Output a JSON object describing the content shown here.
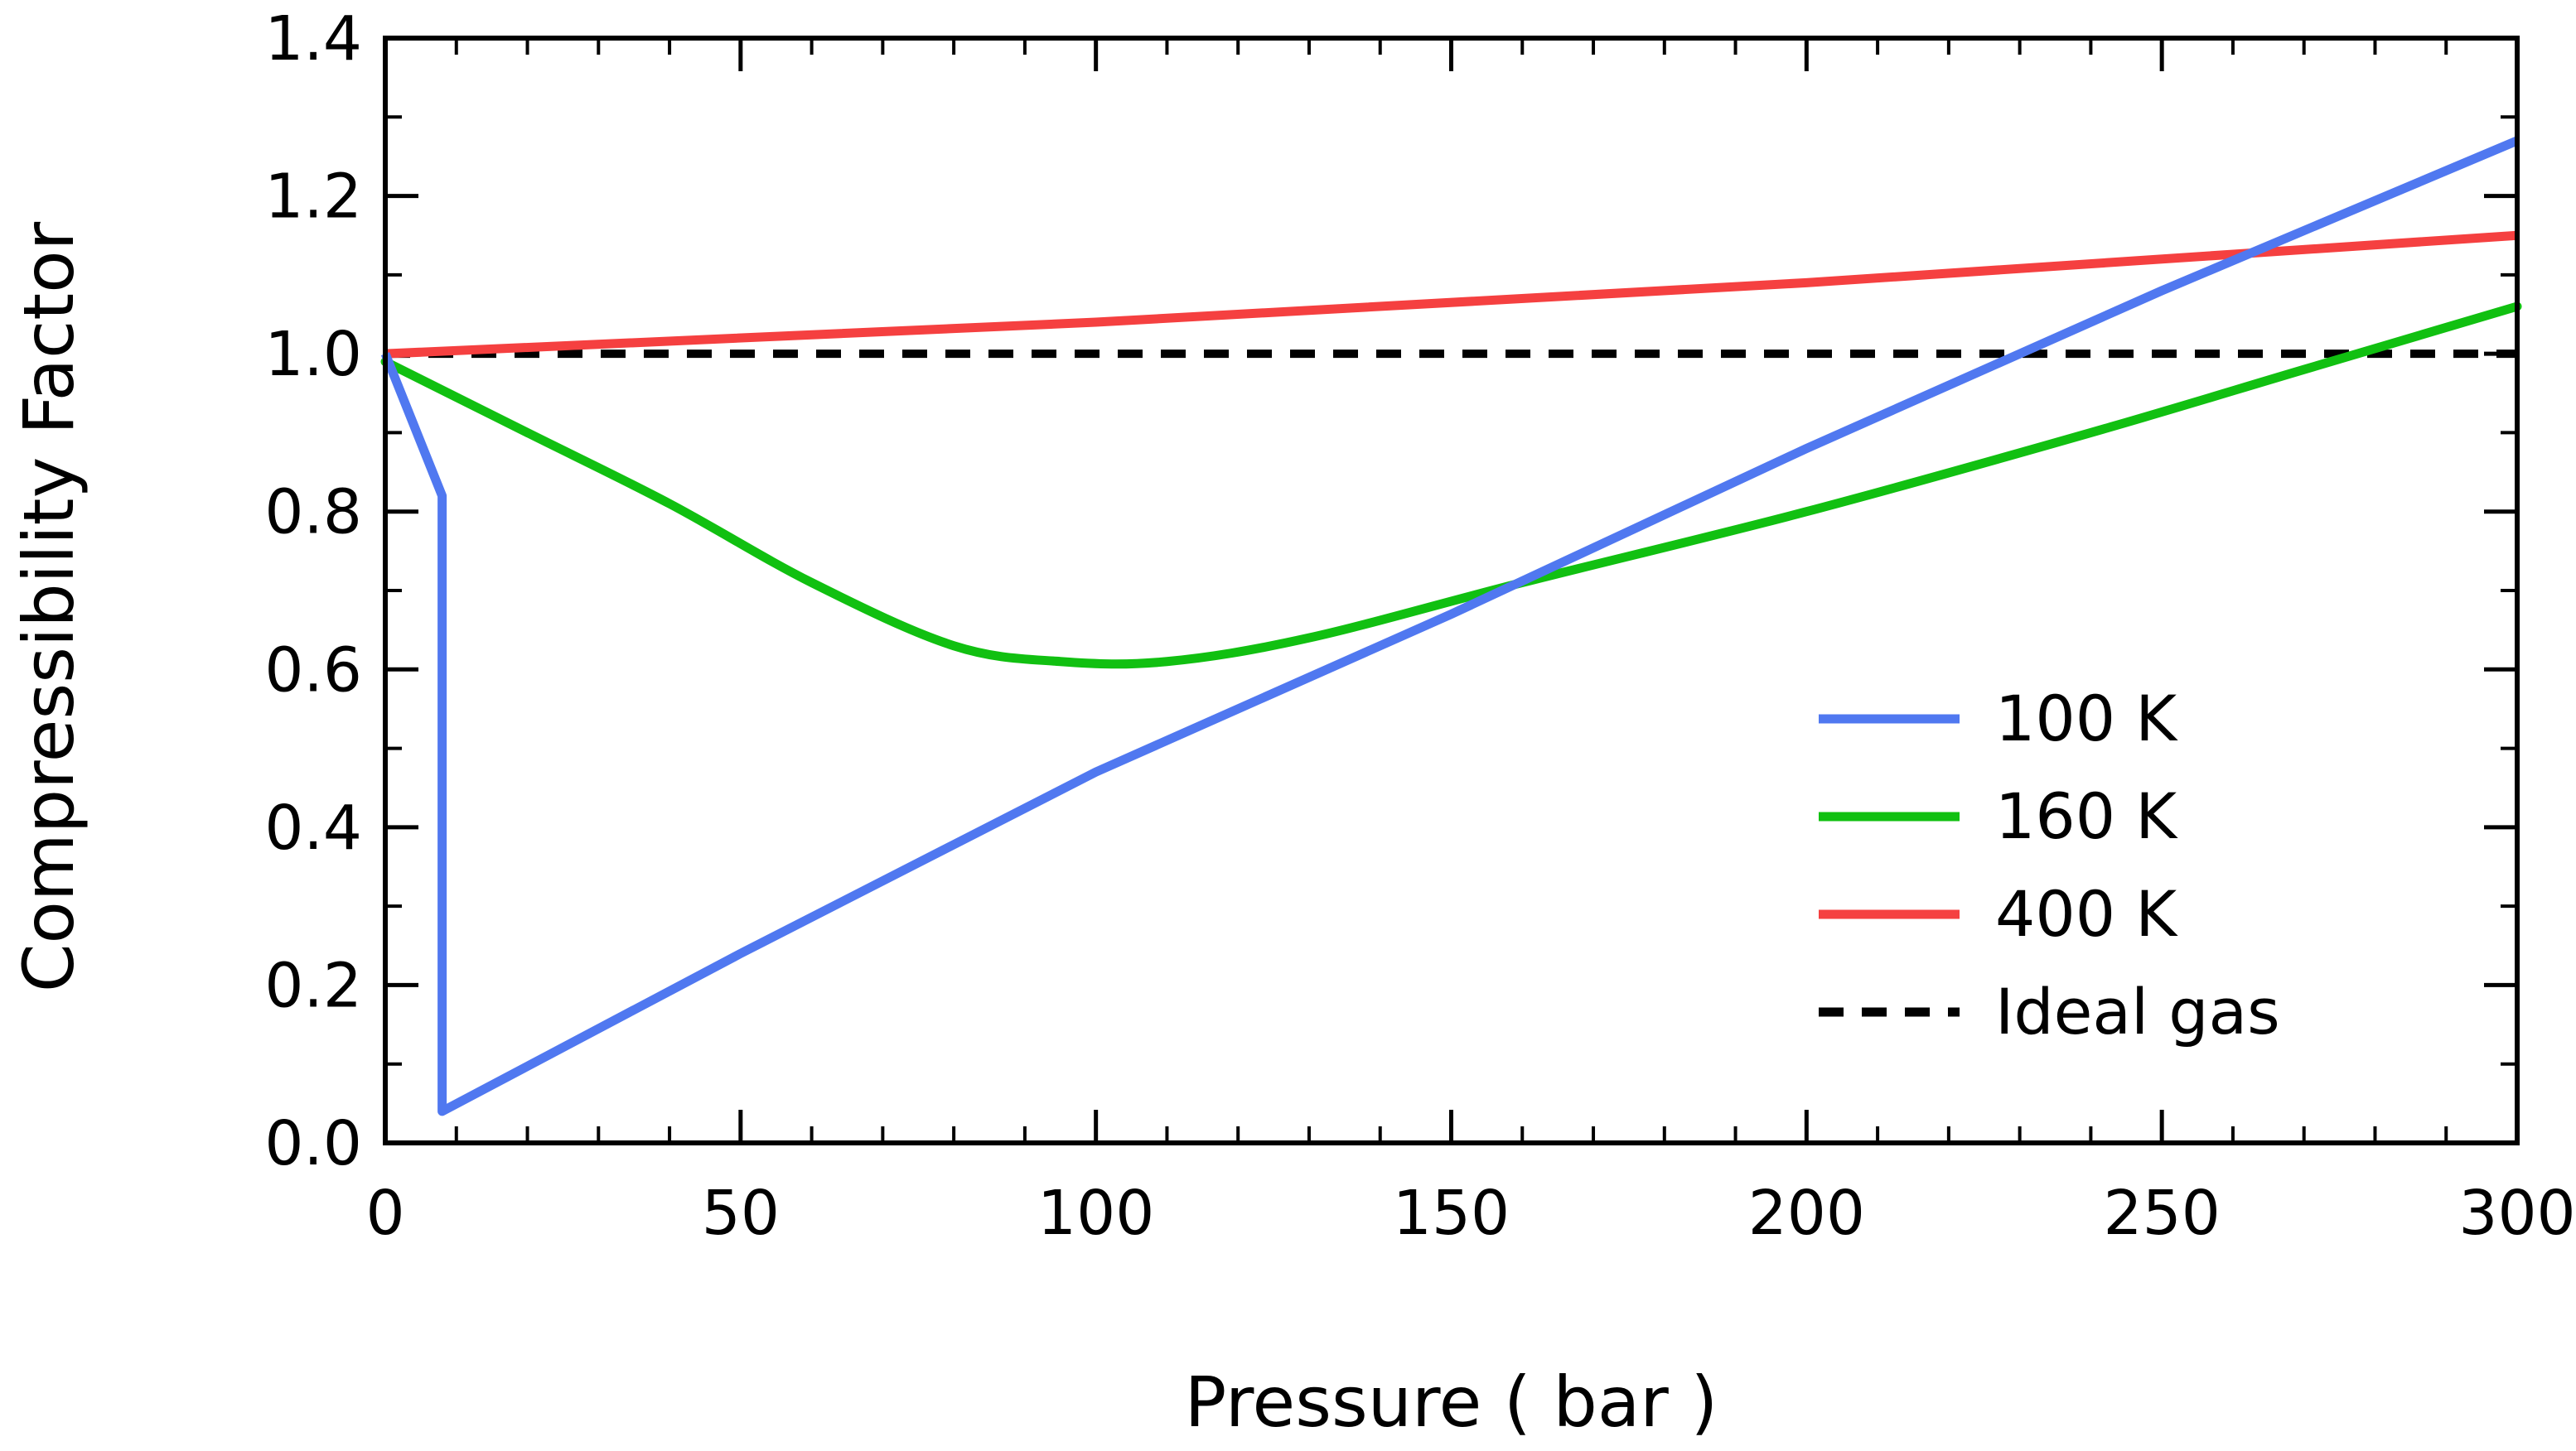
{
  "chart_data": {
    "type": "line",
    "title": "",
    "xlabel": "Pressure ( bar )",
    "ylabel": "Compressibility Factor",
    "xlim": [
      0,
      300
    ],
    "ylim": [
      0,
      1.4
    ],
    "x_ticks": [
      0,
      50,
      100,
      150,
      200,
      250,
      300
    ],
    "x_tick_labels": [
      "0",
      "50",
      "100",
      "150",
      "200",
      "250",
      "300"
    ],
    "y_ticks": [
      0,
      0.2,
      0.4,
      0.6,
      0.8,
      1.0,
      1.2,
      1.4
    ],
    "y_tick_labels": [
      "0.0",
      "0.2",
      "0.4",
      "0.6",
      "0.8",
      "1.0",
      "1.2",
      "1.4"
    ],
    "x_minor_step": 10,
    "y_minor_step": 0.1,
    "grid": false,
    "legend_position": "bottom-right",
    "series": [
      {
        "name": "100 K",
        "color": "#5078f0",
        "style": "solid",
        "x": [
          0,
          8,
          8,
          50,
          100,
          150,
          200,
          250,
          300
        ],
        "y": [
          1.0,
          0.82,
          0.04,
          0.24,
          0.47,
          0.67,
          0.88,
          1.08,
          1.27
        ]
      },
      {
        "name": "160 K",
        "color": "#11c011",
        "style": "solid",
        "x": [
          0,
          20,
          40,
          60,
          80,
          95,
          110,
          130,
          160,
          200,
          240,
          270,
          300
        ],
        "y": [
          0.99,
          0.9,
          0.81,
          0.71,
          0.63,
          0.61,
          0.61,
          0.64,
          0.71,
          0.8,
          0.9,
          0.98,
          1.06
        ]
      },
      {
        "name": "400 K",
        "color": "#f54040",
        "style": "solid",
        "x": [
          0,
          100,
          200,
          300
        ],
        "y": [
          1.0,
          1.04,
          1.09,
          1.15
        ]
      },
      {
        "name": "Ideal gas",
        "color": "#000000",
        "style": "dashed",
        "x": [
          0,
          300
        ],
        "y": [
          1.0,
          1.0
        ]
      }
    ]
  }
}
